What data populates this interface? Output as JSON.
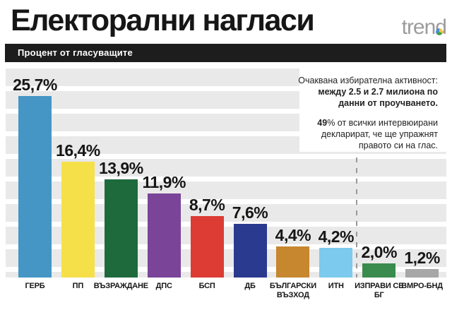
{
  "header": {
    "title": "Електорални нагласи",
    "logo": {
      "text": "trend",
      "dot_colors": [
        "#4a8fd4",
        "#f2c63c",
        "#43a047"
      ]
    },
    "subtitle_bar": "Процент от гласуващите"
  },
  "annotation": {
    "p1_line1": "Очаквана избирателна активност:",
    "p1_line2": "между 2.5 и 2.7 милиона по",
    "p1_line3": "данни от проучването.",
    "p2_bold": "49",
    "p2_line1_rest": "% от всички интервюирани",
    "p2_line2": "декларират, че ще упражнят",
    "p2_line3": "правото си на глас."
  },
  "chart_data": {
    "type": "bar",
    "title": "Електорални нагласи",
    "subtitle": "Процент от гласуващите",
    "unit": "%",
    "categories": [
      "ГЕРБ",
      "ПП",
      "ВЪЗРАЖДАНЕ",
      "ДПС",
      "БСП",
      "ДБ",
      "БЪЛГАРСКИ ВЪЗХОД",
      "ИТН",
      "ИЗПРАВИ СЕ БГ",
      "ВМРО-БНД"
    ],
    "category_labels": [
      "ГЕРБ",
      "ПП",
      "ВЪЗРАЖДАНЕ",
      "ДПС",
      "БСП",
      "ДБ",
      "БЪЛГАРСКИ\nВЪЗХОД",
      "ИТН",
      "ИЗПРАВИ СЕ\nБГ",
      "ВМРО-БНД"
    ],
    "values": [
      25.7,
      16.4,
      13.9,
      11.9,
      8.7,
      7.6,
      4.4,
      4.2,
      2.0,
      1.2
    ],
    "value_labels": [
      "25,7%",
      "16,4%",
      "13,9%",
      "11,9%",
      "8,7%",
      "7,6%",
      "4,4%",
      "4,2%",
      "2,0%",
      "1,2%"
    ],
    "colors": [
      "#4596c4",
      "#f6e04a",
      "#1e6a3d",
      "#7a4499",
      "#dc3c34",
      "#2a3a8e",
      "#c6872e",
      "#7ccaed",
      "#398b4e",
      "#a7a7a7"
    ],
    "ylim": [
      0,
      29.6
    ],
    "legend": "none",
    "gridlines": "horizontal white stripes",
    "threshold_divider": {
      "between": [
        "ИТН",
        "ИЗПРАВИ СЕ БГ"
      ],
      "style": "dashed"
    }
  }
}
